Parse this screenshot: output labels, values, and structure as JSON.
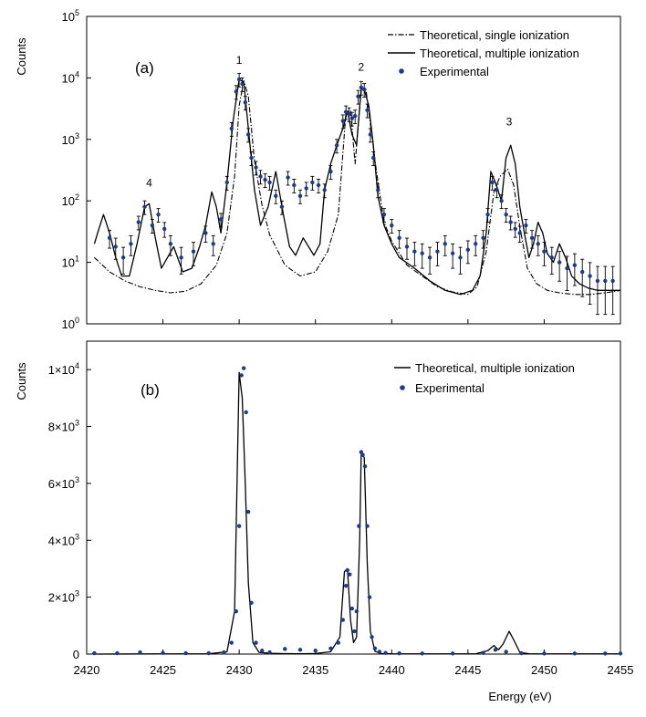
{
  "chart_data": [
    {
      "panel_label": "(a)",
      "type": "line",
      "yscale": "log",
      "ylabel": "Counts",
      "xlabel": "",
      "xlim": [
        2420,
        2455
      ],
      "ylim": [
        1,
        100000
      ],
      "xticks": [
        2420,
        2425,
        2430,
        2435,
        2440,
        2445,
        2450,
        2455
      ],
      "yticks": [
        {
          "value": 1,
          "base": "10",
          "exp": "0"
        },
        {
          "value": 10,
          "base": "10",
          "exp": "1"
        },
        {
          "value": 100,
          "base": "10",
          "exp": "2"
        },
        {
          "value": 1000,
          "base": "10",
          "exp": "3"
        },
        {
          "value": 10000,
          "base": "10",
          "exp": "4"
        },
        {
          "value": 100000,
          "base": "10",
          "exp": "5"
        }
      ],
      "legend_position": "top-right",
      "peak_labels": [
        {
          "text": "1",
          "x": 2430.0,
          "y": 17000
        },
        {
          "text": "2",
          "x": 2438.0,
          "y": 13000
        },
        {
          "text": "3",
          "x": 2447.7,
          "y": 1700
        },
        {
          "text": "4",
          "x": 2424.1,
          "y": 170
        }
      ],
      "series": [
        {
          "name": "Theoretical, single ionization",
          "style": "dashdot",
          "x": [
            2420.5,
            2421.5,
            2422.5,
            2423.5,
            2424.5,
            2425.5,
            2426.5,
            2427.5,
            2428.5,
            2429.2,
            2429.7,
            2430.0,
            2430.3,
            2430.6,
            2431.0,
            2431.5,
            2432.0,
            2433.0,
            2434.0,
            2435.0,
            2435.8,
            2436.5,
            2437.0,
            2437.3,
            2437.6,
            2438.0,
            2438.3,
            2438.6,
            2439.0,
            2439.5,
            2440.0,
            2441.0,
            2442.0,
            2443.0,
            2444.0,
            2445.0,
            2445.6,
            2446.2,
            2446.7,
            2447.1,
            2447.6,
            2448.0,
            2448.4,
            2448.9,
            2449.5,
            2450.2,
            2451.0,
            2452.0,
            2453.0,
            2454.0,
            2455.0
          ],
          "y": [
            12,
            7,
            5,
            4,
            3.5,
            3.2,
            3.4,
            4.5,
            9,
            30,
            250,
            3500,
            9000,
            5000,
            450,
            85,
            28,
            9,
            6,
            7,
            15,
            60,
            2700,
            2900,
            400,
            6500,
            6800,
            1800,
            300,
            45,
            22,
            9,
            6,
            4,
            3.3,
            3,
            4,
            15,
            140,
            250,
            330,
            180,
            38,
            8,
            4.5,
            3.5,
            3.2,
            3,
            3,
            3.2,
            3.5
          ]
        },
        {
          "name": "Theoretical, multiple ionization",
          "style": "solid",
          "x": [
            2420.5,
            2420.8,
            2421.1,
            2421.5,
            2421.9,
            2422.3,
            2422.8,
            2423.3,
            2423.8,
            2424.1,
            2424.5,
            2424.9,
            2425.3,
            2425.7,
            2426.3,
            2426.9,
            2427.4,
            2427.8,
            2428.2,
            2428.5,
            2428.8,
            2429.2,
            2429.6,
            2430.0,
            2430.3,
            2430.6,
            2431.0,
            2431.4,
            2431.9,
            2432.4,
            2432.9,
            2433.3,
            2433.7,
            2434.2,
            2434.9,
            2435.3,
            2435.6,
            2436.0,
            2436.4,
            2436.8,
            2437.1,
            2437.4,
            2437.7,
            2438.0,
            2438.2,
            2438.5,
            2438.8,
            2439.1,
            2439.5,
            2440.0,
            2440.5,
            2441.5,
            2442.5,
            2443.5,
            2444.5,
            2445.3,
            2445.8,
            2446.2,
            2446.5,
            2446.8,
            2447.2,
            2447.5,
            2447.8,
            2448.1,
            2448.4,
            2448.7,
            2449.0,
            2449.3,
            2449.6,
            2449.9,
            2450.2,
            2450.6,
            2451.0,
            2451.4,
            2451.8,
            2452.3,
            2452.9,
            2453.5,
            2454.2,
            2455.0
          ],
          "y": [
            20,
            35,
            60,
            30,
            12,
            6,
            6,
            20,
            80,
            90,
            25,
            8,
            12,
            18,
            7,
            8,
            18,
            40,
            140,
            80,
            30,
            200,
            2000,
            9500,
            8500,
            1500,
            150,
            40,
            80,
            300,
            60,
            18,
            13,
            25,
            13,
            20,
            150,
            400,
            800,
            1500,
            2900,
            1200,
            800,
            7000,
            6500,
            3500,
            800,
            120,
            40,
            20,
            12,
            8,
            5,
            3.5,
            3,
            3.5,
            6,
            30,
            300,
            200,
            100,
            500,
            800,
            400,
            80,
            30,
            12,
            20,
            45,
            30,
            14,
            10,
            20,
            12,
            6,
            4.5,
            3.8,
            3.5,
            3.5,
            3.5
          ]
        },
        {
          "name": "Experimental",
          "style": "points",
          "x": [
            2421.5,
            2421.9,
            2422.4,
            2422.9,
            2423.4,
            2423.8,
            2424.3,
            2424.7,
            2425.1,
            2425.5,
            2426.2,
            2427.0,
            2427.8,
            2428.3,
            2428.8,
            2429.2,
            2429.5,
            2429.8,
            2430.0,
            2430.2,
            2430.4,
            2430.6,
            2430.8,
            2431.1,
            2431.4,
            2431.7,
            2432.0,
            2432.4,
            2432.8,
            2433.2,
            2433.6,
            2434.0,
            2434.4,
            2434.8,
            2435.2,
            2435.6,
            2436.0,
            2436.4,
            2436.8,
            2437.0,
            2437.2,
            2437.4,
            2437.6,
            2437.8,
            2438.0,
            2438.2,
            2438.4,
            2438.6,
            2438.8,
            2439.1,
            2439.5,
            2440.0,
            2440.5,
            2441.0,
            2441.5,
            2442.0,
            2442.5,
            2443.0,
            2443.5,
            2444.0,
            2444.5,
            2445.0,
            2445.5,
            2446.0,
            2446.3,
            2446.6,
            2446.9,
            2447.2,
            2447.5,
            2447.8,
            2448.1,
            2448.4,
            2448.8,
            2449.2,
            2449.6,
            2450.0,
            2450.5,
            2451.0,
            2451.5,
            2452.0,
            2452.5,
            2453.0,
            2453.5,
            2454.0,
            2454.5
          ],
          "y": [
            25,
            18,
            12,
            20,
            45,
            80,
            40,
            60,
            35,
            20,
            12,
            15,
            30,
            20,
            50,
            200,
            1500,
            6000,
            9500,
            8000,
            4000,
            1200,
            500,
            350,
            250,
            220,
            200,
            120,
            80,
            240,
            180,
            120,
            160,
            200,
            180,
            150,
            300,
            800,
            2000,
            2800,
            2600,
            2200,
            2400,
            5000,
            7000,
            6500,
            3000,
            1200,
            500,
            150,
            60,
            40,
            25,
            18,
            15,
            14,
            12,
            15,
            20,
            14,
            12,
            16,
            20,
            25,
            60,
            200,
            150,
            100,
            60,
            45,
            35,
            30,
            40,
            25,
            20,
            15,
            12,
            10,
            8,
            9,
            7,
            6,
            5,
            5,
            5
          ]
        }
      ]
    },
    {
      "panel_label": "(b)",
      "type": "line",
      "yscale": "linear",
      "ylabel": "Counts",
      "xlabel": "Energy (eV)",
      "xlim": [
        2420,
        2455
      ],
      "ylim": [
        0,
        11000
      ],
      "xticks": [
        2420,
        2425,
        2430,
        2435,
        2440,
        2445,
        2450,
        2455
      ],
      "yticks": [
        {
          "value": 0,
          "label": "0"
        },
        {
          "value": 2000,
          "mant": "2×10",
          "exp": "3"
        },
        {
          "value": 4000,
          "mant": "4×10",
          "exp": "3"
        },
        {
          "value": 6000,
          "mant": "6×10",
          "exp": "3"
        },
        {
          "value": 8000,
          "mant": "8×10",
          "exp": "3"
        },
        {
          "value": 10000,
          "mant": "1×10",
          "exp": "4"
        }
      ],
      "legend_position": "top-right",
      "series": [
        {
          "name": "Theoretical, multiple ionization",
          "style": "solid",
          "x": [
            2420.5,
            2428.0,
            2429.2,
            2429.7,
            2430.0,
            2430.2,
            2430.4,
            2430.6,
            2430.9,
            2431.3,
            2432.0,
            2433.0,
            2434.0,
            2435.0,
            2436.0,
            2436.6,
            2436.9,
            2437.1,
            2437.3,
            2437.5,
            2437.7,
            2437.9,
            2438.0,
            2438.2,
            2438.4,
            2438.6,
            2438.9,
            2439.3,
            2440.0,
            2445.5,
            2446.3,
            2446.7,
            2447.0,
            2447.3,
            2447.7,
            2448.0,
            2448.4,
            2449.0,
            2455.0
          ],
          "x_note": "data units",
          "y": [
            0,
            10,
            80,
            1500,
            9900,
            9000,
            6000,
            2500,
            400,
            60,
            30,
            15,
            10,
            20,
            80,
            600,
            2900,
            3000,
            1200,
            400,
            600,
            4000,
            7100,
            6900,
            3200,
            800,
            100,
            20,
            10,
            5,
            120,
            300,
            150,
            350,
            800,
            500,
            60,
            10,
            5
          ]
        },
        {
          "name": "Experimental",
          "style": "points",
          "x": [
            2420.5,
            2422.0,
            2423.5,
            2425.0,
            2426.5,
            2428.0,
            2429.0,
            2429.5,
            2429.8,
            2430.0,
            2430.15,
            2430.3,
            2430.45,
            2430.6,
            2430.8,
            2431.1,
            2431.5,
            2432.0,
            2433.0,
            2434.0,
            2435.0,
            2436.0,
            2436.5,
            2436.8,
            2437.0,
            2437.1,
            2437.25,
            2437.4,
            2437.55,
            2437.7,
            2437.85,
            2438.0,
            2438.1,
            2438.25,
            2438.4,
            2438.55,
            2438.7,
            2438.9,
            2439.2,
            2439.6,
            2440.5,
            2442.0,
            2444.0,
            2446.0,
            2446.8,
            2447.5,
            2448.5,
            2450.0,
            2452.0,
            2454.0,
            2455.0
          ],
          "y": [
            30,
            30,
            60,
            40,
            30,
            30,
            60,
            400,
            1500,
            4500,
            9800,
            10050,
            8500,
            5000,
            1800,
            400,
            120,
            60,
            180,
            150,
            120,
            200,
            400,
            1200,
            2400,
            2950,
            2800,
            1600,
            800,
            1500,
            4500,
            7100,
            7000,
            6600,
            4500,
            2000,
            600,
            200,
            80,
            40,
            25,
            20,
            20,
            40,
            150,
            80,
            30,
            20,
            20,
            20,
            20
          ]
        }
      ]
    }
  ],
  "legend": {
    "a": [
      "Theoretical, single ionization",
      "Theoretical, multiple ionization",
      "Experimental"
    ],
    "b": [
      "Theoretical, multiple ionization",
      "Experimental"
    ]
  },
  "colors": {
    "experimental": "#1f3a8a",
    "theory": "#000000",
    "axis": "#000000"
  }
}
